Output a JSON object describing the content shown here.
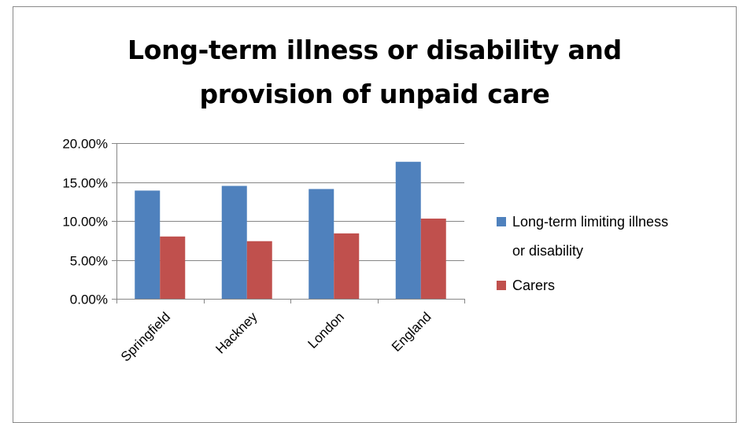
{
  "chart_data": {
    "type": "bar",
    "title": "Long-term illness or disability and provision of unpaid care",
    "title_lines": [
      "Long-term illness or disability and",
      "provision of unpaid care"
    ],
    "categories": [
      "Springfield",
      "Hackney",
      "London",
      "England"
    ],
    "series": [
      {
        "name": "Long-term limiting illness or disability",
        "legend_lines": [
          "Long-term limiting illness",
          "or disability"
        ],
        "color": "#4F81BD",
        "values": [
          0.139,
          0.145,
          0.141,
          0.176
        ]
      },
      {
        "name": "Carers",
        "legend_lines": [
          "Carers"
        ],
        "color": "#C0504D",
        "values": [
          0.08,
          0.074,
          0.084,
          0.103
        ]
      }
    ],
    "ylim": [
      0,
      0.2
    ],
    "yticks": [
      0,
      0.05,
      0.1,
      0.15,
      0.2
    ],
    "ytick_labels": [
      "0.00%",
      "5.00%",
      "10.00%",
      "15.00%",
      "20.00%"
    ],
    "grid": true,
    "legend_position": "right",
    "xlabel": "",
    "ylabel": ""
  }
}
